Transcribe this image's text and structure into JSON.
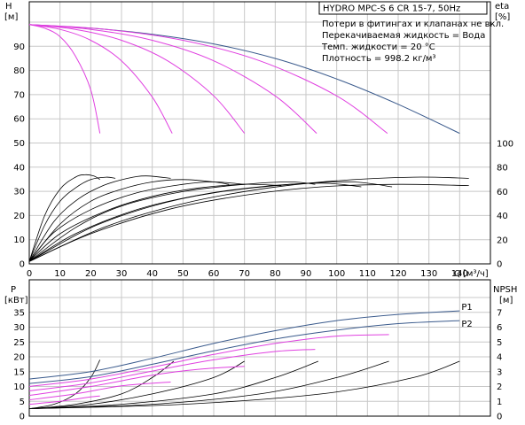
{
  "info": {
    "title": "HYDRO MPC-S 6 CR 15-7, 50Hz",
    "lines": [
      "Потери в фитингах и клапанах не вкл.",
      "Перекачиваемая жидкость = Вода",
      "Темп. жидкости = 20 °C",
      "Плотность = 998.2 кг/м³"
    ]
  },
  "colors": {
    "pump": "#3a5a8c",
    "part": "#e040e0",
    "black": "#000000",
    "grid": "#c8c8c8"
  },
  "chart_data": [
    {
      "type": "line",
      "name": "head-efficiency",
      "ylabel": "H",
      "yunit": "[м]",
      "y2label": "eta",
      "y2unit": "[%]",
      "xlabel": "Q",
      "xunit": "[м³/ч]",
      "xlim": [
        0,
        150
      ],
      "ylim": [
        0,
        100
      ],
      "y2lim": [
        0,
        100
      ],
      "x_ticks": [
        0,
        10,
        20,
        30,
        40,
        50,
        60,
        70,
        80,
        90,
        100,
        110,
        120,
        130,
        140
      ],
      "y_ticks": [
        0,
        10,
        20,
        30,
        40,
        50,
        60,
        70,
        80,
        90
      ],
      "y2_ticks": [
        0,
        20,
        40,
        60,
        80,
        100
      ],
      "head_curves": [
        {
          "color": "pump",
          "points": [
            [
              0,
              99
            ],
            [
              20,
              97.5
            ],
            [
              40,
              95
            ],
            [
              60,
              91
            ],
            [
              80,
              85
            ],
            [
              100,
              76.5
            ],
            [
              120,
              66
            ],
            [
              140,
              54
            ]
          ]
        },
        {
          "color": "part",
          "points": [
            [
              0,
              99
            ],
            [
              5,
              97.5
            ],
            [
              10,
              94
            ],
            [
              15,
              86
            ],
            [
              20,
              72
            ],
            [
              23,
              54
            ]
          ]
        },
        {
          "color": "part",
          "points": [
            [
              0,
              99
            ],
            [
              10,
              97
            ],
            [
              20,
              92.5
            ],
            [
              30,
              84
            ],
            [
              40,
              69
            ],
            [
              46.5,
              54
            ]
          ]
        },
        {
          "color": "part",
          "points": [
            [
              0,
              99
            ],
            [
              15,
              97
            ],
            [
              30,
              92.5
            ],
            [
              45,
              84
            ],
            [
              60,
              69.5
            ],
            [
              70,
              54
            ]
          ]
        },
        {
          "color": "part",
          "points": [
            [
              0,
              99
            ],
            [
              20,
              97
            ],
            [
              40,
              92.5
            ],
            [
              60,
              84
            ],
            [
              80,
              69.5
            ],
            [
              93.5,
              54
            ]
          ]
        },
        {
          "color": "part",
          "points": [
            [
              0,
              99
            ],
            [
              25,
              97
            ],
            [
              50,
              92.5
            ],
            [
              75,
              84
            ],
            [
              100,
              69.5
            ],
            [
              116.5,
              54
            ]
          ]
        }
      ],
      "eta_curves": [
        {
          "points": [
            [
              0,
              2
            ],
            [
              5,
              40
            ],
            [
              10,
              62
            ],
            [
              15,
              72
            ],
            [
              18,
              74
            ],
            [
              21,
              73
            ],
            [
              23,
              70
            ]
          ]
        },
        {
          "points": [
            [
              0,
              2
            ],
            [
              5,
              32
            ],
            [
              10,
              52
            ],
            [
              15,
              63
            ],
            [
              20,
              70
            ],
            [
              25,
              72
            ],
            [
              28,
              71
            ]
          ]
        },
        {
          "points": [
            [
              0,
              2
            ],
            [
              8,
              35
            ],
            [
              16,
              54
            ],
            [
              24,
              65
            ],
            [
              32,
              71
            ],
            [
              38,
              73
            ],
            [
              46,
              71
            ]
          ]
        },
        {
          "points": [
            [
              0,
              2
            ],
            [
              10,
              33
            ],
            [
              20,
              52
            ],
            [
              30,
              62
            ],
            [
              40,
              68
            ],
            [
              50,
              70
            ],
            [
              60,
              68
            ],
            [
              65,
              66
            ]
          ]
        },
        {
          "points": [
            [
              0,
              2
            ],
            [
              8,
              26
            ],
            [
              20,
              45
            ],
            [
              35,
              59
            ],
            [
              50,
              66
            ],
            [
              60,
              68
            ],
            [
              70,
              66
            ]
          ]
        },
        {
          "points": [
            [
              0,
              2
            ],
            [
              10,
              25
            ],
            [
              25,
              44
            ],
            [
              40,
              56
            ],
            [
              55,
              63
            ],
            [
              70,
              66
            ],
            [
              82,
              65
            ]
          ]
        },
        {
          "points": [
            [
              0,
              2
            ],
            [
              15,
              30
            ],
            [
              30,
              48
            ],
            [
              50,
              60
            ],
            [
              70,
              66
            ],
            [
              85,
              68
            ],
            [
              93,
              66
            ]
          ]
        },
        {
          "points": [
            [
              0,
              2
            ],
            [
              15,
              25
            ],
            [
              35,
              45
            ],
            [
              55,
              57
            ],
            [
              75,
              64
            ],
            [
              95,
              67
            ],
            [
              108,
              64
            ]
          ]
        },
        {
          "points": [
            [
              0,
              2
            ],
            [
              20,
              30
            ],
            [
              40,
              48
            ],
            [
              60,
              59
            ],
            [
              85,
              66
            ],
            [
              105,
              68
            ],
            [
              118,
              64
            ]
          ]
        },
        {
          "points": [
            [
              0,
              2
            ],
            [
              20,
              25
            ],
            [
              45,
              45
            ],
            [
              70,
              57
            ],
            [
              95,
              64
            ],
            [
              120,
              66
            ],
            [
              143,
              65
            ]
          ]
        },
        {
          "points": [
            [
              0,
              2
            ],
            [
              25,
              31
            ],
            [
              50,
              50
            ],
            [
              75,
              62
            ],
            [
              100,
              69
            ],
            [
              125,
              72
            ],
            [
              143,
              71
            ]
          ]
        }
      ]
    },
    {
      "type": "line",
      "name": "power-npsh",
      "ylabel": "P",
      "yunit": "[кВт]",
      "y2label": "NPSH",
      "y2unit": "[м]",
      "xlim": [
        0,
        150
      ],
      "ylim": [
        0,
        40
      ],
      "y2lim": [
        0,
        8
      ],
      "y_ticks": [
        0,
        5,
        10,
        15,
        20,
        25,
        30,
        35
      ],
      "y2_ticks": [
        0,
        1,
        2,
        3,
        4,
        5,
        6,
        7
      ],
      "series_labels": [
        "P1",
        "P2"
      ],
      "power_curves": [
        {
          "color": "pump",
          "points": [
            [
              0,
              12.5
            ],
            [
              20,
              15
            ],
            [
              40,
              19.5
            ],
            [
              60,
              24.5
            ],
            [
              80,
              28.8
            ],
            [
              100,
              32.2
            ],
            [
              120,
              34.3
            ],
            [
              140,
              35.5
            ]
          ]
        },
        {
          "color": "pump",
          "points": [
            [
              0,
              11
            ],
            [
              20,
              13.3
            ],
            [
              40,
              17.5
            ],
            [
              60,
              22
            ],
            [
              80,
              26
            ],
            [
              100,
              29
            ],
            [
              120,
              31.2
            ],
            [
              140,
              32.2
            ]
          ]
        },
        {
          "color": "part",
          "points": [
            [
              0,
              10
            ],
            [
              20,
              12.5
            ],
            [
              40,
              16.5
            ],
            [
              60,
              20.8
            ],
            [
              80,
              24.5
            ],
            [
              100,
              27
            ],
            [
              117,
              27.5
            ]
          ]
        },
        {
          "color": "part",
          "points": [
            [
              0,
              8.5
            ],
            [
              20,
              11.2
            ],
            [
              40,
              15.2
            ],
            [
              60,
              19
            ],
            [
              80,
              21.8
            ],
            [
              93,
              22.5
            ]
          ]
        },
        {
          "color": "part",
          "points": [
            [
              0,
              7
            ],
            [
              20,
              10
            ],
            [
              40,
              13.8
            ],
            [
              55,
              15.8
            ],
            [
              70,
              16.8
            ]
          ]
        },
        {
          "color": "part",
          "points": [
            [
              0,
              5.5
            ],
            [
              15,
              7.5
            ],
            [
              30,
              10.2
            ],
            [
              46,
              11.5
            ]
          ]
        },
        {
          "color": "part",
          "points": [
            [
              0,
              4
            ],
            [
              10,
              5
            ],
            [
              20,
              6.5
            ],
            [
              23,
              6.8
            ]
          ]
        }
      ],
      "npsh_curves": [
        {
          "points": [
            [
              0,
              0.5
            ],
            [
              8,
              0.8
            ],
            [
              15,
              1.5
            ],
            [
              20,
              2.6
            ],
            [
              23,
              3.8
            ]
          ]
        },
        {
          "points": [
            [
              0,
              0.5
            ],
            [
              15,
              0.8
            ],
            [
              30,
              1.5
            ],
            [
              40,
              2.6
            ],
            [
              47,
              3.7
            ]
          ]
        },
        {
          "points": [
            [
              0,
              0.5
            ],
            [
              20,
              0.8
            ],
            [
              40,
              1.5
            ],
            [
              60,
              2.6
            ],
            [
              70,
              3.7
            ]
          ]
        },
        {
          "points": [
            [
              0,
              0.5
            ],
            [
              30,
              0.8
            ],
            [
              60,
              1.5
            ],
            [
              80,
              2.6
            ],
            [
              94,
              3.7
            ]
          ]
        },
        {
          "points": [
            [
              0,
              0.5
            ],
            [
              40,
              0.8
            ],
            [
              75,
              1.5
            ],
            [
              100,
              2.6
            ],
            [
              117,
              3.7
            ]
          ]
        },
        {
          "points": [
            [
              0,
              0.5
            ],
            [
              50,
              0.8
            ],
            [
              95,
              1.5
            ],
            [
              125,
              2.6
            ],
            [
              140,
              3.7
            ]
          ]
        }
      ]
    }
  ]
}
